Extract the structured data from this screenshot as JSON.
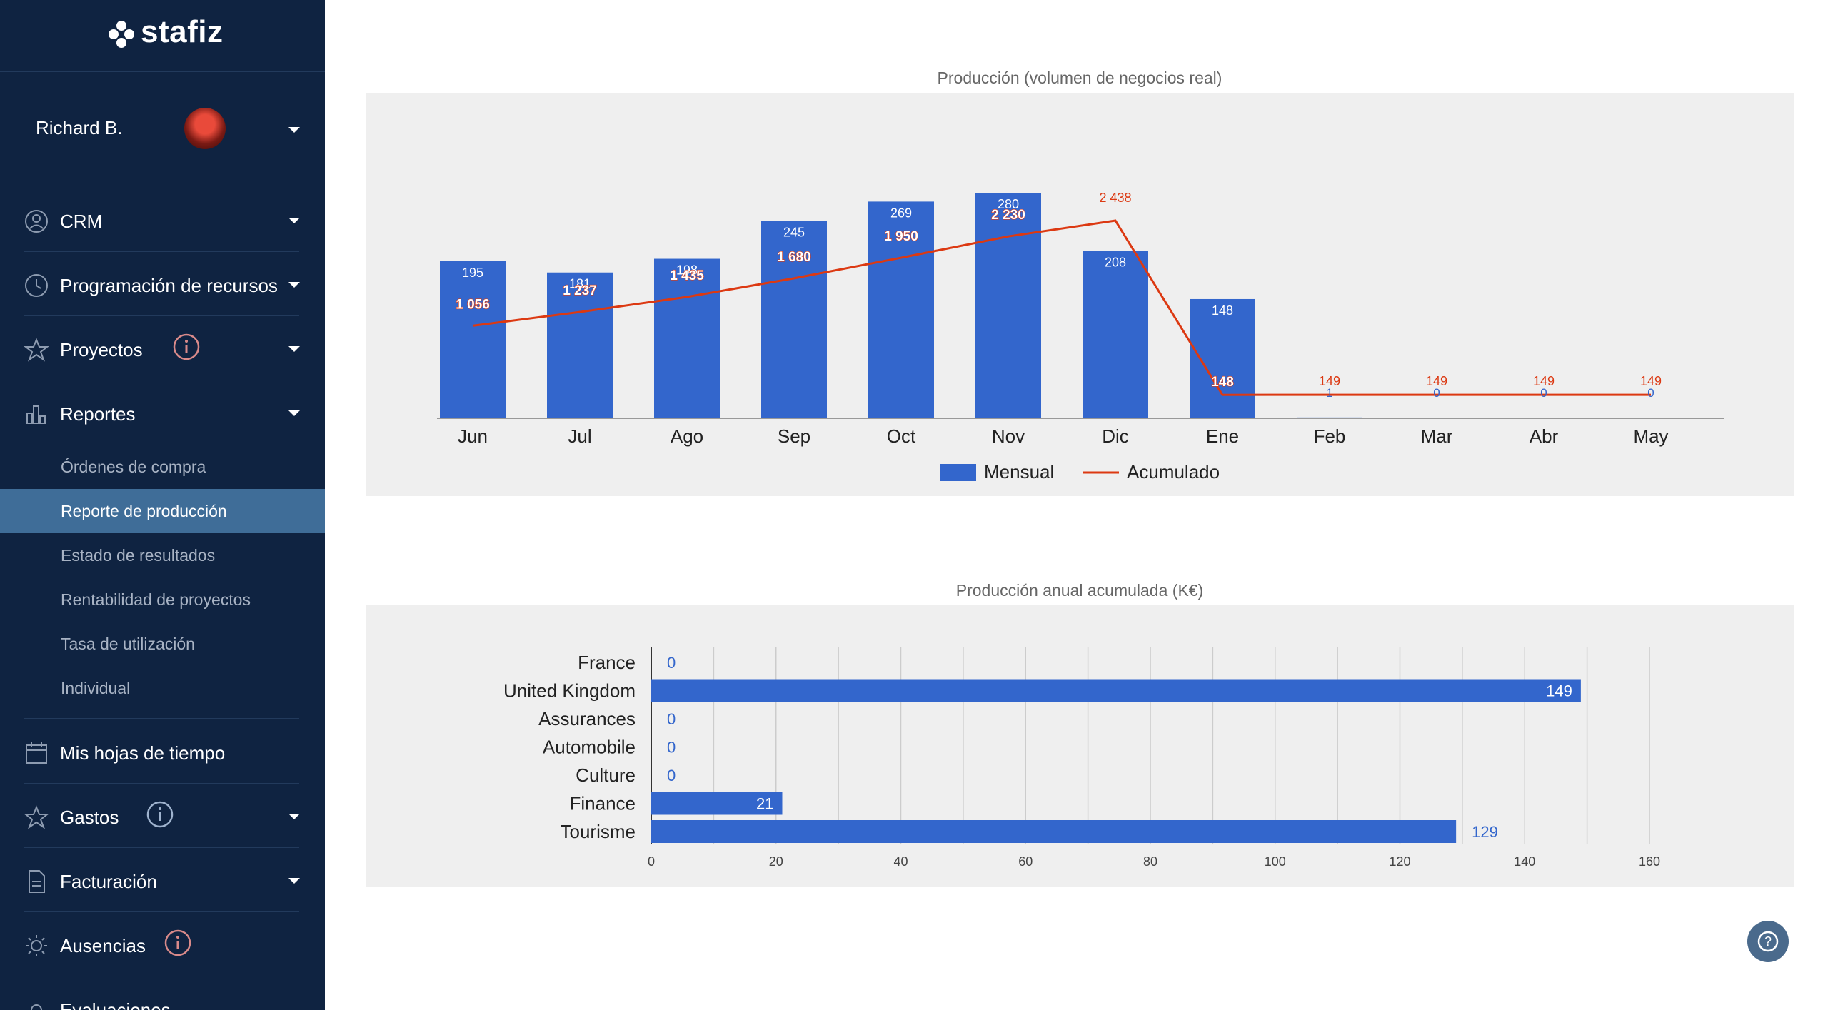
{
  "brand": {
    "name": "stafiz"
  },
  "user": {
    "name": "Richard B."
  },
  "nav": {
    "crm": "CRM",
    "resources": "Programación de recursos",
    "projects": "Proyectos",
    "reports": "Reportes",
    "report_items": [
      "Órdenes de compra",
      "Reporte de producción",
      "Estado de resultados",
      "Rentabilidad de proyectos",
      "Tasa de utilización",
      "Individual"
    ],
    "timesheets": "Mis hojas de tiempo",
    "expenses": "Gastos",
    "billing": "Facturación",
    "absences": "Ausencias",
    "evaluations": "Evaluaciones"
  },
  "colors": {
    "bar": "#3366cc",
    "line": "#dc3912",
    "sidebar": "#0f2341",
    "active": "#3f6d98"
  },
  "chart_data": [
    {
      "type": "bar+line",
      "title": "Producción (volumen de negocios real)",
      "categories": [
        "Jun",
        "Jul",
        "Ago",
        "Sep",
        "Oct",
        "Nov",
        "Dic",
        "Ene",
        "Feb",
        "Mar",
        "Abr",
        "May"
      ],
      "series": [
        {
          "name": "Mensual",
          "type": "bar",
          "values": [
            195,
            181,
            198,
            245,
            269,
            280,
            208,
            148,
            1,
            0,
            0,
            0
          ],
          "labels": [
            "195",
            "181",
            "198",
            "245",
            "269",
            "280",
            "208",
            "148",
            "1",
            "0",
            "0",
            "0"
          ]
        },
        {
          "name": "Acumulado",
          "type": "line",
          "values": [
            1056,
            1237,
            1435,
            1680,
            1950,
            2230,
            2438,
            148,
            149,
            149,
            149,
            149
          ],
          "labels": [
            "1 056",
            "1 237",
            "1 435",
            "1 680",
            "1 950",
            "2 230",
            "2 438",
            "148",
            "149",
            "149",
            "149",
            "149"
          ]
        }
      ],
      "legend": "bottom"
    },
    {
      "type": "bar",
      "orientation": "horizontal",
      "title": "Producción anual acumulada (K€)",
      "categories": [
        "France",
        "United Kingdom",
        "Assurances",
        "Automobile",
        "Culture",
        "Finance",
        "Tourisme"
      ],
      "values": [
        0,
        149,
        0,
        0,
        0,
        21,
        129
      ],
      "labels": [
        "0",
        "149",
        "0",
        "0",
        "0",
        "21",
        "129"
      ],
      "xlim": [
        0,
        160
      ],
      "xticks": [
        "0",
        "20",
        "40",
        "60",
        "80",
        "100",
        "120",
        "140",
        "160"
      ],
      "grid": true
    }
  ]
}
